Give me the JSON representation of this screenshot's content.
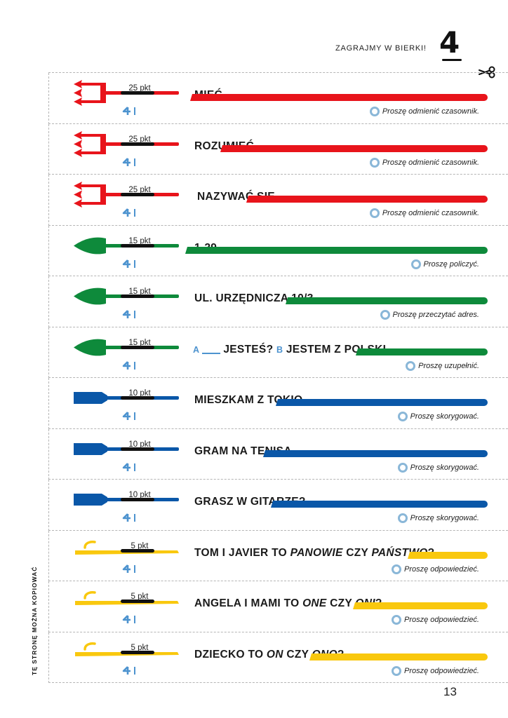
{
  "header": {
    "title": "ZAGRAJMY W BIERKI!",
    "chapter": "4"
  },
  "side_text": "TĘ STRONĘ MOŻNA KOPIOWAĆ",
  "page_number": "13",
  "colors": {
    "red": "#e8141b",
    "green": "#0e8a3b",
    "blue": "#0a57a8",
    "yellow": "#f9c80e",
    "hint_ring": "#8ab7d8",
    "label_blue": "#4d93cf"
  },
  "icons": {
    "scissors": "scissors-icon",
    "stick": "pickup-stick-icon",
    "hint": "hint-circle-icon"
  },
  "cards": [
    {
      "points": "25 pkt",
      "type": "trident",
      "color": "red",
      "task": "MIEĆ",
      "hint": "Proszę odmienić czasownik."
    },
    {
      "points": "25 pkt",
      "type": "trident",
      "color": "red",
      "task": "ROZUMIEĆ",
      "hint": "Proszę odmienić czasownik."
    },
    {
      "points": "25 pkt",
      "type": "trident",
      "color": "red",
      "task": "NAZYWAĆ SIĘ",
      "hint": "Proszę odmienić czasownik."
    },
    {
      "points": "15 pkt",
      "type": "spear",
      "color": "green",
      "task": "1-29",
      "hint": "Proszę policzyć."
    },
    {
      "points": "15 pkt",
      "type": "spear",
      "color": "green",
      "task": "UL. URZĘDNICZA 10/3",
      "hint": "Proszę przeczytać adres."
    },
    {
      "points": "15 pkt",
      "type": "spear",
      "color": "green",
      "task": "",
      "task_parts": {
        "a": "A",
        "q1": "JESTEŚ?",
        "b": "B",
        "q2": "JESTEM Z POLSKI."
      },
      "hint": "Proszę uzupełnić."
    },
    {
      "points": "10 pkt",
      "type": "paddle",
      "color": "blue",
      "task": "MIESZKAM Z TOKIO.",
      "hint": "Proszę skorygować."
    },
    {
      "points": "10 pkt",
      "type": "paddle",
      "color": "blue",
      "task": "GRAM NA TENISA.",
      "hint": "Proszę skorygować."
    },
    {
      "points": "10 pkt",
      "type": "paddle",
      "color": "blue",
      "task": "GRASZ W GITARZE?",
      "hint": "Proszę skorygować."
    },
    {
      "points": "5 pkt",
      "type": "hook",
      "color": "yellow",
      "task": "",
      "task_parts": {
        "t1": "TOM I JAVIER TO ",
        "i1": "PANOWIE",
        "t2": " CZY ",
        "i2": "PAŃSTWO",
        "t3": "?"
      },
      "hint": "Proszę odpowiedzieć."
    },
    {
      "points": "5 pkt",
      "type": "hook",
      "color": "yellow",
      "task": "",
      "task_parts": {
        "t1": "ANGELA I MAMI TO ",
        "i1": "ONE",
        "t2": " CZY ",
        "i2": "ONI",
        "t3": "?"
      },
      "hint": "Proszę odpowiedzieć."
    },
    {
      "points": "5 pkt",
      "type": "hook",
      "color": "yellow",
      "task": "",
      "task_parts": {
        "t1": "DZIECKO TO ",
        "i1": "ON",
        "t2": " CZY ",
        "i2": "ONO",
        "t3": "?"
      },
      "hint": "Proszę odpowiedzieć."
    }
  ]
}
